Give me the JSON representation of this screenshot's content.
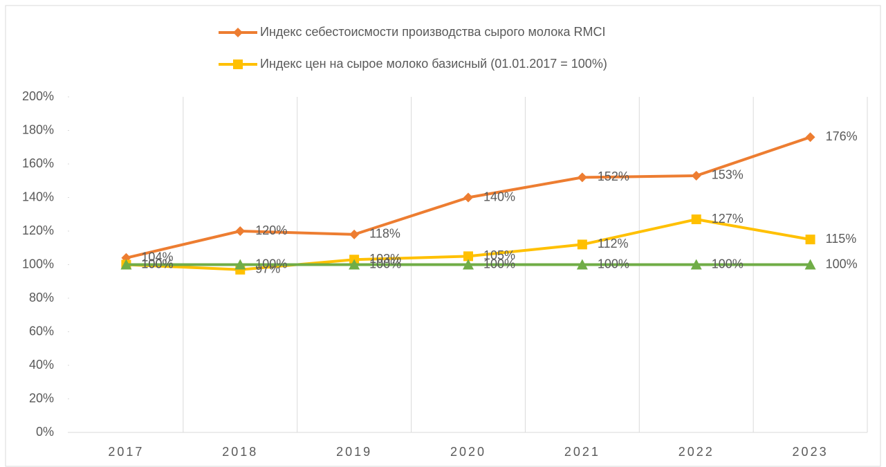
{
  "chart_data": {
    "type": "line",
    "categories": [
      "2017",
      "2018",
      "2019",
      "2020",
      "2021",
      "2022",
      "2023"
    ],
    "series": [
      {
        "name": "Индекс себестоисмости производства сырого молока RMCI",
        "color": "#ED7D31",
        "marker": "diamond",
        "values": [
          104,
          120,
          118,
          140,
          152,
          153,
          176
        ],
        "value_labels": [
          "104%",
          "120%",
          "118%",
          "140%",
          "152%",
          "153%",
          "176%"
        ]
      },
      {
        "name": "Индекс цен на сырое молоко базисный (01.01.2017 = 100%)",
        "color": "#FFC000",
        "marker": "square",
        "values": [
          100,
          97,
          103,
          105,
          112,
          127,
          115
        ],
        "value_labels": [
          "100%",
          "97%",
          "103%",
          "105%",
          "112%",
          "127%",
          "115%"
        ]
      },
      {
        "color": "#70AD47",
        "marker": "triangle",
        "values": [
          100,
          100,
          100,
          100,
          100,
          100,
          100
        ],
        "value_labels": [
          "100%",
          "100%",
          "100%",
          "100%",
          "100%",
          "100%",
          "100%"
        ]
      }
    ],
    "ylim": [
      0,
      200
    ],
    "yticks": [
      {
        "value": 0,
        "label": "0%"
      },
      {
        "value": 20,
        "label": "20%"
      },
      {
        "value": 40,
        "label": "40%"
      },
      {
        "value": 60,
        "label": "60%"
      },
      {
        "value": 80,
        "label": "80%"
      },
      {
        "value": 100,
        "label": "100%"
      },
      {
        "value": 120,
        "label": "120%"
      },
      {
        "value": 140,
        "label": "140%"
      },
      {
        "value": 160,
        "label": "160%"
      },
      {
        "value": 180,
        "label": "180%"
      },
      {
        "value": 200,
        "label": "200%"
      }
    ],
    "legend": "top"
  }
}
